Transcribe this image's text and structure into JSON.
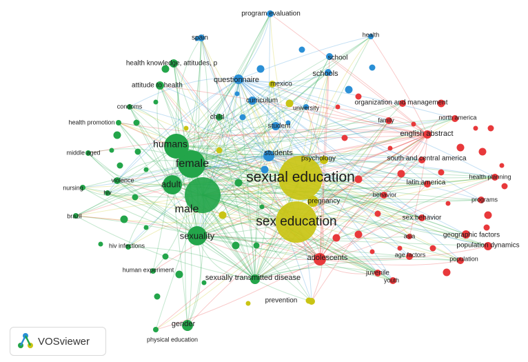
{
  "app": {
    "brand": "VOSviewer",
    "logo_icon": "vosviewer-logo-icon"
  },
  "clusters": {
    "red": "#e8393b",
    "green": "#23a54a",
    "blue": "#2a8fd6",
    "yellow": "#c9c414"
  },
  "nodes": [
    {
      "id": "sexual-education",
      "label": "sexual education",
      "cluster": "yellow"
    },
    {
      "id": "sex-education",
      "label": "sex education",
      "cluster": "yellow"
    },
    {
      "id": "humans",
      "label": "humans",
      "cluster": "green"
    },
    {
      "id": "female",
      "label": "female",
      "cluster": "green"
    },
    {
      "id": "male",
      "label": "male",
      "cluster": "green"
    },
    {
      "id": "adult",
      "label": "adult",
      "cluster": "green"
    },
    {
      "id": "sexuality",
      "label": "sexuality",
      "cluster": "green"
    },
    {
      "id": "pregnancy",
      "label": "pregnancy",
      "cluster": "yellow"
    },
    {
      "id": "psychology",
      "label": "psychology",
      "cluster": "yellow"
    },
    {
      "id": "students",
      "label": "students",
      "cluster": "blue"
    },
    {
      "id": "student",
      "label": "student",
      "cluster": "blue"
    },
    {
      "id": "questionnaire",
      "label": "questionnaire",
      "cluster": "blue"
    },
    {
      "id": "curriculum",
      "label": "curriculum",
      "cluster": "blue"
    },
    {
      "id": "school",
      "label": "school",
      "cluster": "blue"
    },
    {
      "id": "schools",
      "label": "schools",
      "cluster": "blue"
    },
    {
      "id": "program-evaluation",
      "label": "program evaluation",
      "cluster": "blue"
    },
    {
      "id": "spain",
      "label": "spain",
      "cluster": "blue"
    },
    {
      "id": "health",
      "label": "health",
      "cluster": "blue"
    },
    {
      "id": "mexico",
      "label": "mexico",
      "cluster": "yellow"
    },
    {
      "id": "university",
      "label": "university",
      "cluster": "blue"
    },
    {
      "id": "child",
      "label": "child",
      "cluster": "green"
    },
    {
      "id": "health-knowledge",
      "label": "health knowledge, attitudes, p",
      "cluster": "green"
    },
    {
      "id": "attitude-to-health",
      "label": "attitude to health",
      "cluster": "green"
    },
    {
      "id": "condoms",
      "label": "condoms",
      "cluster": "green"
    },
    {
      "id": "health-promotion",
      "label": "health promotion",
      "cluster": "green"
    },
    {
      "id": "middle-aged",
      "label": "middle aged",
      "cluster": "green"
    },
    {
      "id": "violence",
      "label": "violence",
      "cluster": "green"
    },
    {
      "id": "hiv",
      "label": "hiv",
      "cluster": "green"
    },
    {
      "id": "nursing",
      "label": "nursing",
      "cluster": "green"
    },
    {
      "id": "brazil",
      "label": "brazil",
      "cluster": "green"
    },
    {
      "id": "hiv-infections",
      "label": "hiv infections",
      "cluster": "green"
    },
    {
      "id": "human-experiment",
      "label": "human experiment",
      "cluster": "green"
    },
    {
      "id": "std",
      "label": "sexually transmitted disease",
      "cluster": "green"
    },
    {
      "id": "gender",
      "label": "gender",
      "cluster": "green"
    },
    {
      "id": "physical-education",
      "label": "physical education",
      "cluster": "green"
    },
    {
      "id": "prevention",
      "label": "prevention",
      "cluster": "yellow"
    },
    {
      "id": "adolescents",
      "label": "adolescents",
      "cluster": "red"
    },
    {
      "id": "juvenile",
      "label": "juvenile",
      "cluster": "red"
    },
    {
      "id": "youth",
      "label": "youth",
      "cluster": "red"
    },
    {
      "id": "age-factors",
      "label": "age factors",
      "cluster": "red"
    },
    {
      "id": "population",
      "label": "population",
      "cluster": "red"
    },
    {
      "id": "population-dynamics",
      "label": "population dynamics",
      "cluster": "red"
    },
    {
      "id": "geographic-factors",
      "label": "geographic factors",
      "cluster": "red"
    },
    {
      "id": "asia",
      "label": "asia",
      "cluster": "red"
    },
    {
      "id": "sex-behavior",
      "label": "sex behavior",
      "cluster": "red"
    },
    {
      "id": "behavior",
      "label": "behavior",
      "cluster": "red"
    },
    {
      "id": "latin-america",
      "label": "latin america",
      "cluster": "red"
    },
    {
      "id": "south-central-america",
      "label": "south and central america",
      "cluster": "red"
    },
    {
      "id": "health-planning",
      "label": "health planning",
      "cluster": "red"
    },
    {
      "id": "programs",
      "label": "programs",
      "cluster": "red"
    },
    {
      "id": "english-abstract",
      "label": "english abstract",
      "cluster": "red"
    },
    {
      "id": "north-america",
      "label": "north america",
      "cluster": "red"
    },
    {
      "id": "family",
      "label": "family",
      "cluster": "red"
    },
    {
      "id": "org-management",
      "label": "organization and management",
      "cluster": "red"
    }
  ]
}
